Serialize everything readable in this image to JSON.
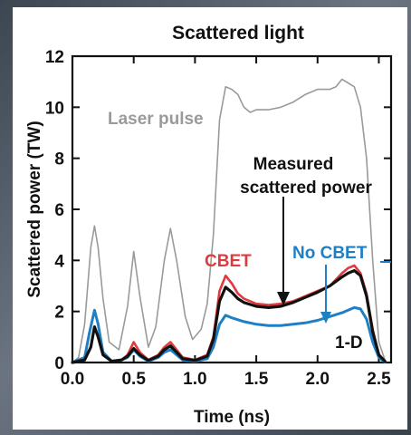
{
  "chart_data": {
    "type": "line",
    "title": "Scattered light",
    "xlabel": "Time (ns)",
    "ylabel": "Scattered power (TW)",
    "xlim": [
      0,
      2.6
    ],
    "ylim": [
      0,
      12
    ],
    "x_ticks": [
      0,
      0.5,
      1.0,
      1.5,
      2.0,
      2.5
    ],
    "x_tick_labels": [
      "0.0",
      "0.5",
      "1.0",
      "1.5",
      "2.0",
      "2.5"
    ],
    "y_ticks": [
      0,
      2,
      4,
      6,
      8,
      10,
      12
    ],
    "y_tick_labels": [
      "0",
      "2",
      "4",
      "6",
      "8",
      "10",
      "12"
    ],
    "grid": false,
    "series": [
      {
        "name": "Laser pulse",
        "color": "#9a9a9a",
        "x": [
          0,
          0.05,
          0.1,
          0.15,
          0.18,
          0.21,
          0.25,
          0.3,
          0.38,
          0.45,
          0.5,
          0.55,
          0.62,
          0.68,
          0.75,
          0.8,
          0.85,
          0.92,
          0.98,
          1.05,
          1.1,
          1.15,
          1.2,
          1.25,
          1.3,
          1.35,
          1.4,
          1.45,
          1.5,
          1.6,
          1.7,
          1.8,
          1.9,
          2.0,
          2.1,
          2.15,
          2.2,
          2.3,
          2.35,
          2.4,
          2.45,
          2.5,
          2.55
        ],
        "y": [
          0,
          0.2,
          1.5,
          4.5,
          5.35,
          4.5,
          2.5,
          0.8,
          0.5,
          2.2,
          4.35,
          2.6,
          0.6,
          1.4,
          4.0,
          5.25,
          4.0,
          1.8,
          0.9,
          1.3,
          2.3,
          5.0,
          9.5,
          10.8,
          10.7,
          10.5,
          10.0,
          9.8,
          9.9,
          9.9,
          10.0,
          10.2,
          10.5,
          10.7,
          10.7,
          10.8,
          11.1,
          10.8,
          10.0,
          8.0,
          4.0,
          0.8,
          0.1
        ]
      },
      {
        "name": "CBET",
        "color": "#e03a3e",
        "x": [
          0,
          0.1,
          0.15,
          0.18,
          0.21,
          0.25,
          0.32,
          0.4,
          0.45,
          0.5,
          0.55,
          0.62,
          0.7,
          0.75,
          0.8,
          0.85,
          0.9,
          1.0,
          1.1,
          1.15,
          1.2,
          1.25,
          1.3,
          1.35,
          1.4,
          1.5,
          1.6,
          1.7,
          1.8,
          1.9,
          2.0,
          2.1,
          2.2,
          2.25,
          2.3,
          2.35,
          2.4,
          2.45,
          2.5,
          2.55
        ],
        "y": [
          0,
          0.1,
          0.6,
          1.4,
          1.0,
          0.3,
          0.05,
          0.1,
          0.3,
          0.8,
          0.4,
          0.1,
          0.3,
          0.6,
          0.8,
          0.5,
          0.2,
          0.1,
          0.3,
          1.0,
          2.8,
          3.4,
          3.1,
          2.7,
          2.5,
          2.3,
          2.25,
          2.3,
          2.4,
          2.6,
          2.8,
          3.0,
          3.5,
          3.7,
          3.8,
          3.5,
          2.7,
          1.3,
          0.3,
          0.05
        ]
      },
      {
        "name": "Measured scattered power",
        "color": "#111111",
        "x": [
          0,
          0.1,
          0.15,
          0.18,
          0.21,
          0.25,
          0.32,
          0.4,
          0.45,
          0.5,
          0.55,
          0.62,
          0.7,
          0.75,
          0.8,
          0.85,
          0.9,
          1.0,
          1.1,
          1.15,
          1.2,
          1.25,
          1.3,
          1.35,
          1.4,
          1.5,
          1.6,
          1.7,
          1.8,
          1.9,
          2.0,
          2.1,
          2.2,
          2.25,
          2.3,
          2.35,
          2.4,
          2.45,
          2.5,
          2.55
        ],
        "y": [
          0,
          0.1,
          0.6,
          1.4,
          1.0,
          0.3,
          0.05,
          0.1,
          0.25,
          0.55,
          0.3,
          0.08,
          0.25,
          0.5,
          0.65,
          0.4,
          0.15,
          0.08,
          0.25,
          0.9,
          2.4,
          2.95,
          2.75,
          2.5,
          2.35,
          2.2,
          2.15,
          2.2,
          2.35,
          2.55,
          2.75,
          3.0,
          3.35,
          3.5,
          3.6,
          3.4,
          2.6,
          1.2,
          0.3,
          0.05
        ]
      },
      {
        "name": "No CBET",
        "color": "#1f7fc4",
        "x": [
          0,
          0.1,
          0.14,
          0.18,
          0.21,
          0.25,
          0.32,
          0.4,
          0.45,
          0.5,
          0.55,
          0.62,
          0.7,
          0.75,
          0.8,
          0.85,
          0.9,
          1.0,
          1.1,
          1.15,
          1.2,
          1.25,
          1.3,
          1.4,
          1.5,
          1.6,
          1.7,
          1.8,
          1.9,
          2.0,
          2.1,
          2.2,
          2.25,
          2.3,
          2.35,
          2.4,
          2.45,
          2.5,
          2.55
        ],
        "y": [
          0,
          0.2,
          1.2,
          2.05,
          1.5,
          0.4,
          0.05,
          0.1,
          0.2,
          0.5,
          0.25,
          0.05,
          0.2,
          0.4,
          0.5,
          0.3,
          0.1,
          0.05,
          0.15,
          0.6,
          1.5,
          1.85,
          1.75,
          1.6,
          1.5,
          1.45,
          1.45,
          1.5,
          1.55,
          1.65,
          1.8,
          1.95,
          2.05,
          2.15,
          2.1,
          1.7,
          0.8,
          0.2,
          0.02
        ]
      },
      {
        "name": "1-D",
        "color": "#111111",
        "x": [],
        "y": []
      }
    ],
    "annotations": [
      {
        "text": "Laser pulse",
        "color": "#9a9a9a"
      },
      {
        "text": "Measured",
        "color": "#111111"
      },
      {
        "text": "scattered power",
        "color": "#111111"
      },
      {
        "text": "CBET",
        "color": "#e03a3e"
      },
      {
        "text": "No CBET",
        "color": "#1f7fc4"
      },
      {
        "text": "1-D",
        "color": "#111111"
      }
    ]
  }
}
